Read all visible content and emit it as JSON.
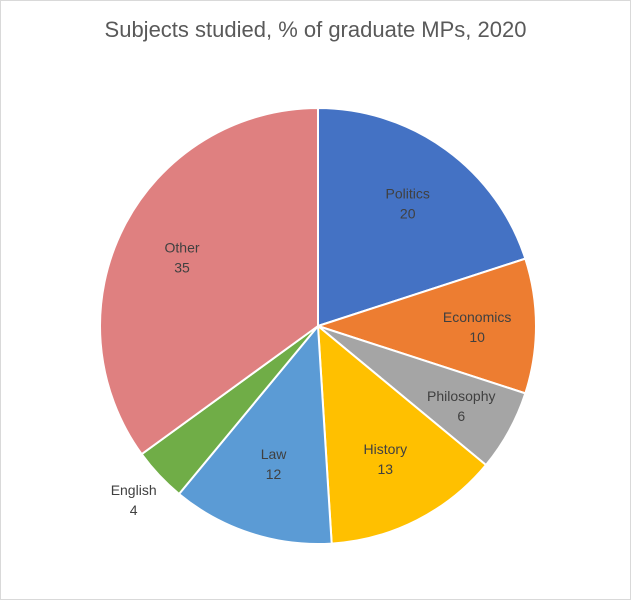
{
  "chart_data": {
    "type": "pie",
    "title": "Subjects studied, % of graduate MPs, 2020",
    "categories": [
      "Politics",
      "Economics",
      "Philosophy",
      "History",
      "Law",
      "English",
      "Other"
    ],
    "values": [
      20,
      10,
      6,
      13,
      12,
      4,
      35
    ],
    "colors": [
      "#4472c4",
      "#ed7d31",
      "#a5a5a5",
      "#ffc000",
      "#5b9bd5",
      "#70ad47",
      "#df8080"
    ],
    "label_colors": [
      "#404040",
      "#404040",
      "#404040",
      "#404040",
      "#404040",
      "#404040",
      "#404040"
    ],
    "data_labels": "category-and-value",
    "start_angle_deg": 0,
    "direction": "clockwise",
    "legend": "none"
  }
}
